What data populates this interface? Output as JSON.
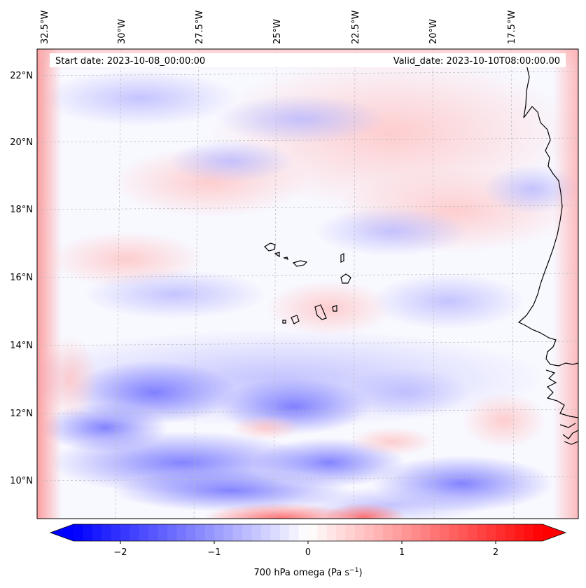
{
  "map": {
    "start_label": "Start date: 2023-10-08_00:00:00",
    "valid_label": "Valid_date: 2023-10-10T08:00:00.00",
    "lon_labels": [
      "32.5°W",
      "30°W",
      "27.5°W",
      "25°W",
      "22.5°W",
      "20°W",
      "17.5°W"
    ],
    "lat_labels": [
      "22°N",
      "20°N",
      "18°N",
      "16°N",
      "14°N",
      "12°N",
      "10°N"
    ],
    "colors": {
      "negative": "#0000ff",
      "positive": "#ff0000",
      "neutral": "#ffffff",
      "coastline": "#000000",
      "gridline": "#bbbbbb"
    }
  },
  "colorbar": {
    "ticks": [
      "−2",
      "−1",
      "0",
      "1",
      "2"
    ],
    "tick_values": [
      -2,
      -1,
      0,
      1,
      2
    ],
    "range": [
      -2.5,
      2.5
    ],
    "label": "700 hPa omega (Pa s",
    "label_sup": "−1",
    "label_end": ")"
  }
}
